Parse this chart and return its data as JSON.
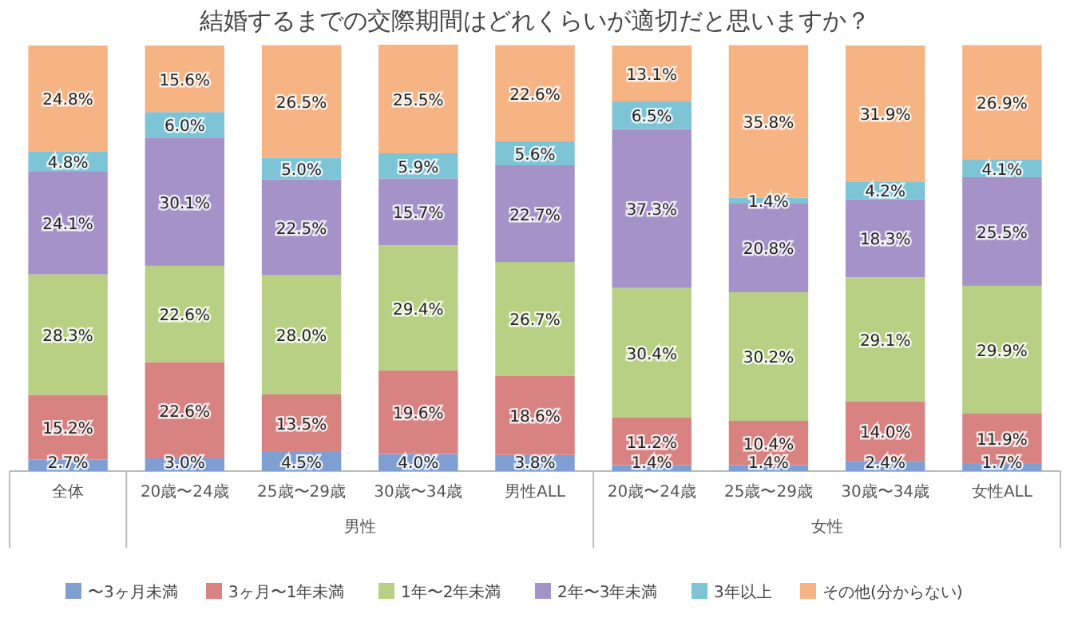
{
  "chart_data": {
    "type": "bar",
    "stacked": true,
    "legend": "bottom",
    "title": "結婚するまでの交際期間はどれくらいが適切だと思いますか？",
    "categories": [
      "全体",
      "20歳〜24歳",
      "25歳〜29歳",
      "30歳〜34歳",
      "男性ALL",
      "20歳〜24歳",
      "25歳〜29歳",
      "30歳〜34歳",
      "女性ALL"
    ],
    "annotations": [
      "男性",
      "女性"
    ],
    "series": [
      {
        "name": "〜3ヶ月未満",
        "color": "#7f9fd3",
        "values": [
          2.7,
          3.0,
          4.5,
          4.0,
          3.8,
          1.4,
          1.4,
          2.4,
          1.7
        ],
        "value_labels": [
          "2.7%",
          "3.0%",
          "4.5%",
          "4.0%",
          "3.8%",
          "1.4%",
          "1.4%",
          "2.4%",
          "1.7%"
        ]
      },
      {
        "name": "3ヶ月〜1年未満",
        "color": "#d98282",
        "values": [
          15.2,
          22.6,
          13.5,
          19.6,
          18.6,
          11.2,
          10.4,
          14.0,
          11.9
        ],
        "value_labels": [
          "15.2%",
          "22.6%",
          "13.5%",
          "19.6%",
          "18.6%",
          "11.2%",
          "10.4%",
          "14.0%",
          "11.9%"
        ]
      },
      {
        "name": "1年〜2年未満",
        "color": "#b7d084",
        "values": [
          28.3,
          22.6,
          28.0,
          29.4,
          26.7,
          30.4,
          30.2,
          29.1,
          29.9
        ],
        "value_labels": [
          "28.3%",
          "22.6%",
          "28.0%",
          "29.4%",
          "26.7%",
          "30.4%",
          "30.2%",
          "29.1%",
          "29.9%"
        ]
      },
      {
        "name": "2年〜3年未満",
        "color": "#a592c8",
        "values": [
          24.1,
          30.1,
          22.5,
          15.7,
          22.7,
          37.3,
          20.8,
          18.3,
          25.5
        ],
        "value_labels": [
          "24.1%",
          "30.1%",
          "22.5%",
          "15.7%",
          "22.7%",
          "37.3%",
          "20.8%",
          "18.3%",
          "25.5%"
        ]
      },
      {
        "name": "3年以上",
        "color": "#7cc4d6",
        "values": [
          4.8,
          6.0,
          5.0,
          5.9,
          5.6,
          6.5,
          1.4,
          4.2,
          4.1
        ],
        "value_labels": [
          "4.8%",
          "6.0%",
          "5.0%",
          "5.9%",
          "5.6%",
          "6.5%",
          "1.4%",
          "4.2%",
          "4.1%"
        ]
      },
      {
        "name": "その他(分からない)",
        "color": "#f6b384",
        "values": [
          24.8,
          15.6,
          26.5,
          25.5,
          22.6,
          13.1,
          35.8,
          31.9,
          26.9
        ],
        "value_labels": [
          "24.8%",
          "15.6%",
          "26.5%",
          "25.5%",
          "22.6%",
          "13.1%",
          "35.8%",
          "31.9%",
          "26.9%"
        ]
      }
    ]
  }
}
